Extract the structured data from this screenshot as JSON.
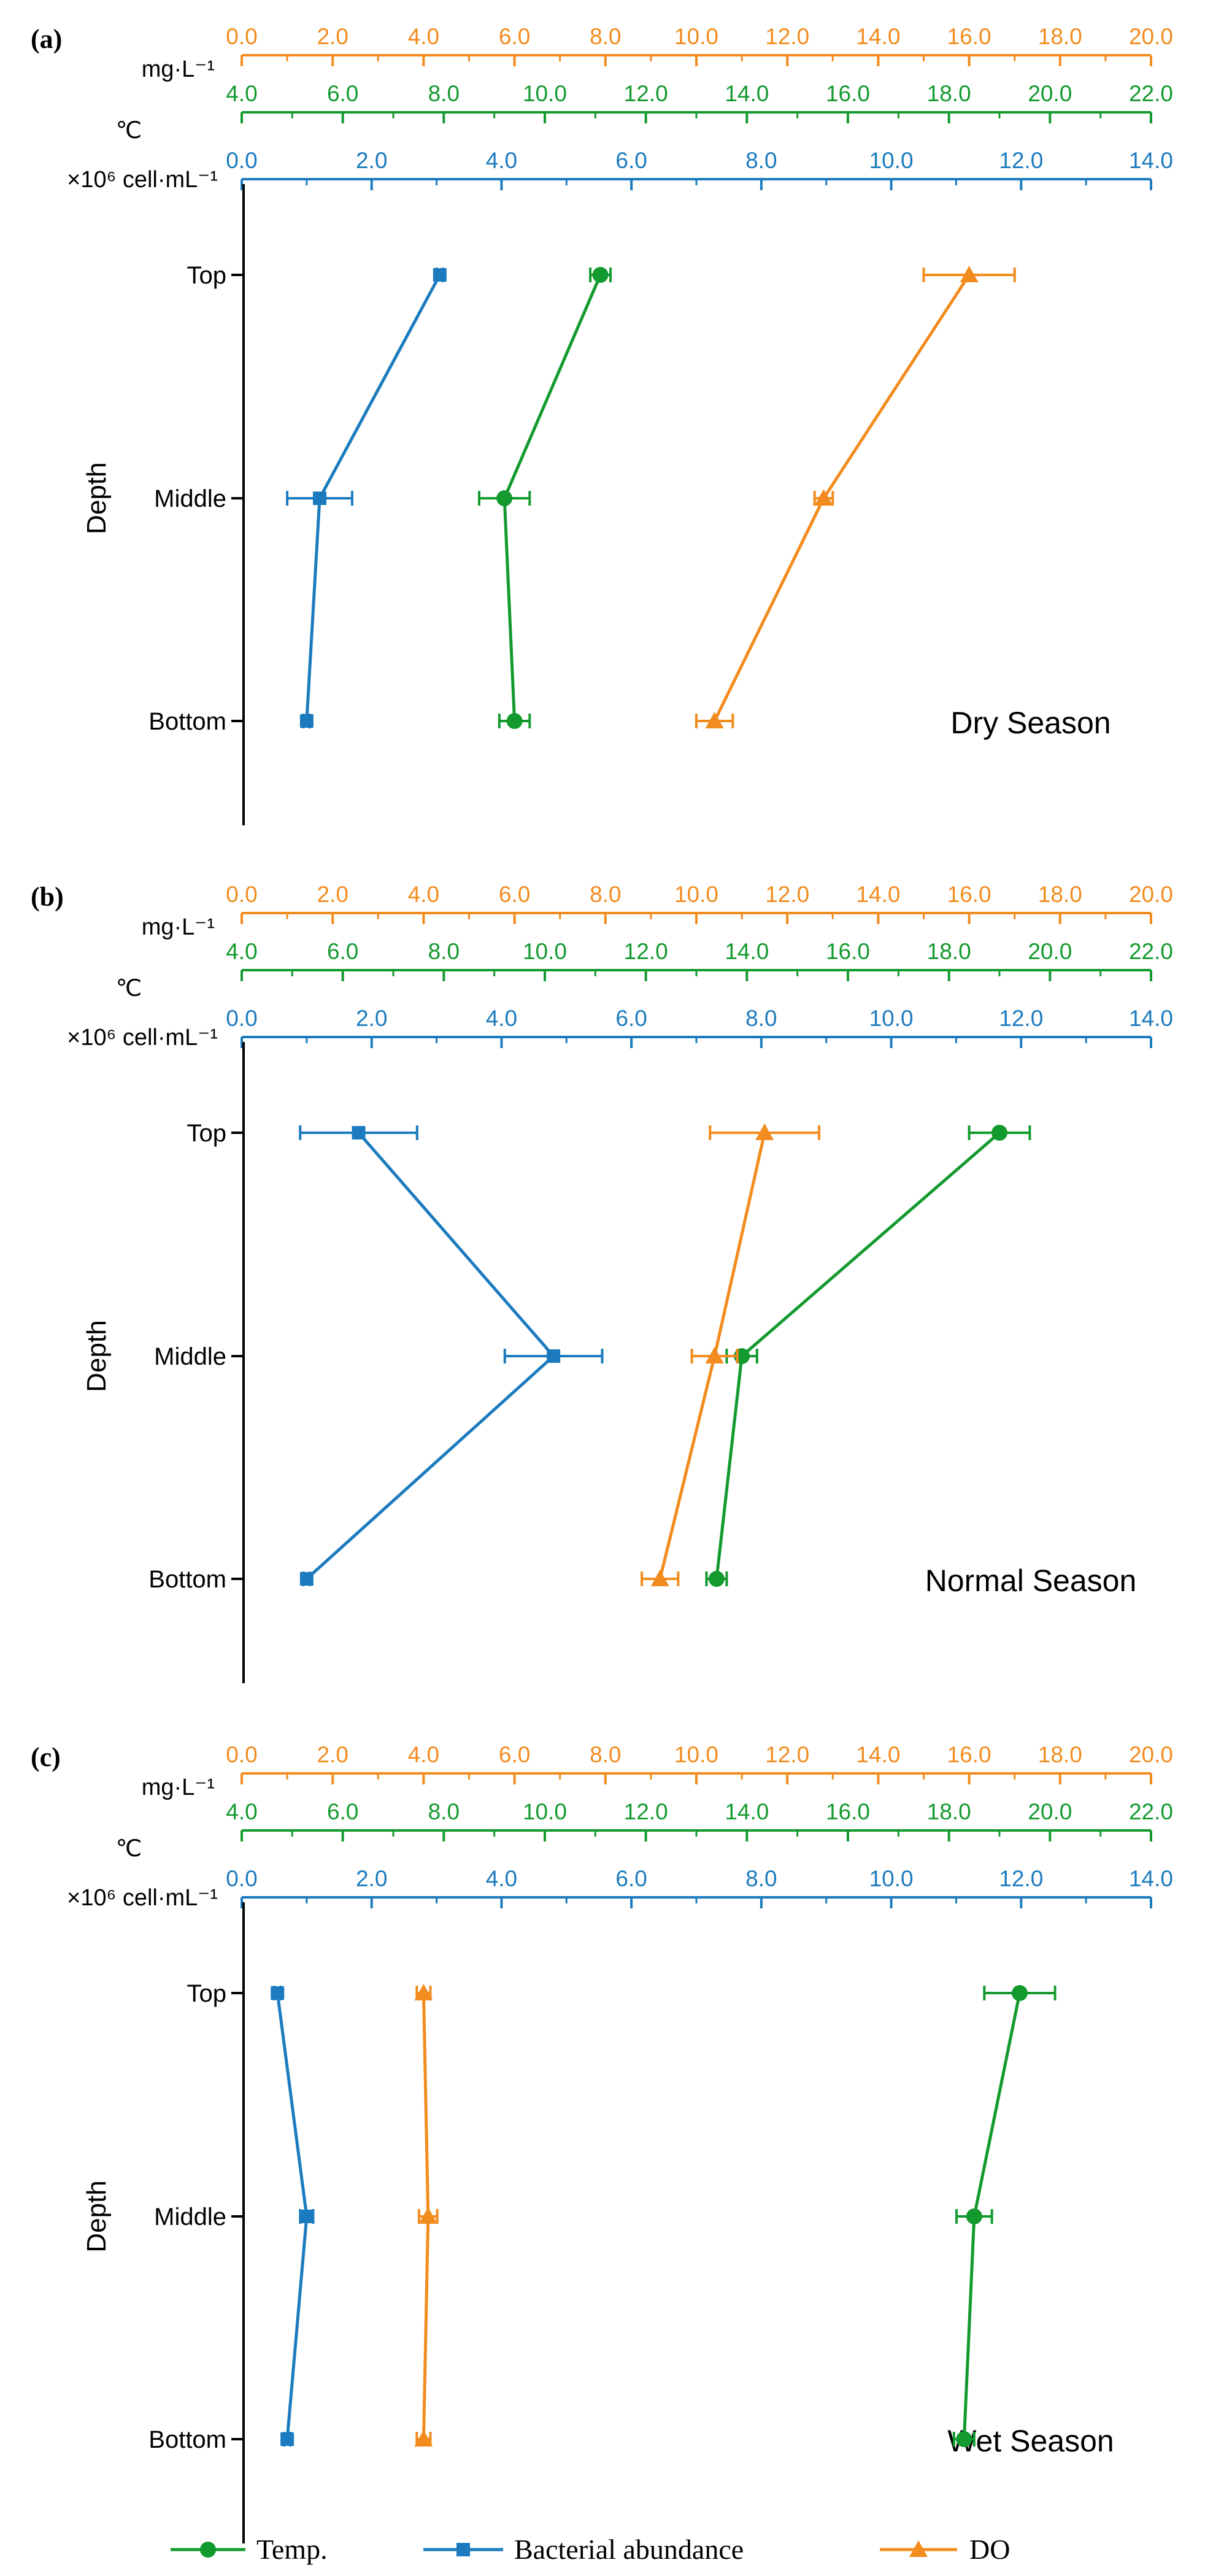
{
  "colors": {
    "do": "#F28C1E",
    "temp": "#139A2E",
    "bact": "#1B7BBE",
    "axis": "#000000"
  },
  "axes": {
    "do": {
      "label": "mg·L⁻¹",
      "range": [
        0,
        20
      ],
      "ticks": [
        "0.0",
        "2.0",
        "4.0",
        "6.0",
        "8.0",
        "10.0",
        "12.0",
        "14.0",
        "16.0",
        "18.0",
        "20.0"
      ]
    },
    "temp": {
      "label": "℃",
      "range": [
        4,
        22
      ],
      "ticks": [
        "4.0",
        "6.0",
        "8.0",
        "10.0",
        "12.0",
        "14.0",
        "16.0",
        "18.0",
        "20.0",
        "22.0"
      ]
    },
    "bact": {
      "label": "×10⁶ cell·mL⁻¹",
      "range": [
        0,
        14
      ],
      "ticks": [
        "0.0",
        "2.0",
        "4.0",
        "6.0",
        "8.0",
        "10.0",
        "12.0",
        "14.0"
      ]
    }
  },
  "depth_axis_label": "Depth",
  "depth_levels": [
    "Top",
    "Middle",
    "Bottom"
  ],
  "legend": [
    {
      "key": "temp",
      "label": "Temp.",
      "marker": "circle"
    },
    {
      "key": "bact",
      "label": "Bacterial abundance",
      "marker": "square"
    },
    {
      "key": "do",
      "label": "DO",
      "marker": "triangle"
    }
  ],
  "chart_data": [
    {
      "type": "line",
      "panel": "(a)",
      "title": "Dry Season",
      "ylabel": "Depth",
      "categories": [
        "Top",
        "Middle",
        "Bottom"
      ],
      "series": [
        {
          "name": "Temp.",
          "axis": "temp",
          "values": [
            11.1,
            9.2,
            9.4
          ],
          "errors": [
            0.2,
            0.5,
            0.3
          ]
        },
        {
          "name": "Bacterial abundance",
          "axis": "bact",
          "values": [
            3.05,
            1.2,
            1.0
          ],
          "errors": [
            0.05,
            0.5,
            0.05
          ]
        },
        {
          "name": "DO",
          "axis": "do",
          "values": [
            16.0,
            12.8,
            10.4
          ],
          "errors": [
            1.0,
            0.2,
            0.4
          ]
        }
      ]
    },
    {
      "type": "line",
      "panel": "(b)",
      "title": "Normal Season",
      "ylabel": "Depth",
      "categories": [
        "Top",
        "Middle",
        "Bottom"
      ],
      "series": [
        {
          "name": "Temp.",
          "axis": "temp",
          "values": [
            19.0,
            13.9,
            13.4
          ],
          "errors": [
            0.6,
            0.3,
            0.2
          ]
        },
        {
          "name": "Bacterial abundance",
          "axis": "bact",
          "values": [
            1.8,
            4.8,
            1.0
          ],
          "errors": [
            0.9,
            0.75,
            0.05
          ]
        },
        {
          "name": "DO",
          "axis": "do",
          "values": [
            11.5,
            10.4,
            9.2
          ],
          "errors": [
            1.2,
            0.5,
            0.4
          ]
        }
      ]
    },
    {
      "type": "line",
      "panel": "(c)",
      "title": "Wet Season",
      "ylabel": "Depth",
      "categories": [
        "Top",
        "Middle",
        "Bottom"
      ],
      "series": [
        {
          "name": "Temp.",
          "axis": "temp",
          "values": [
            19.4,
            18.5,
            18.3
          ],
          "errors": [
            0.7,
            0.35,
            0.2
          ]
        },
        {
          "name": "Bacterial abundance",
          "axis": "bact",
          "values": [
            0.55,
            1.0,
            0.7
          ],
          "errors": [
            0.05,
            0.1,
            0.05
          ]
        },
        {
          "name": "DO",
          "axis": "do",
          "values": [
            4.0,
            4.1,
            4.0
          ],
          "errors": [
            0.15,
            0.2,
            0.15
          ]
        }
      ]
    }
  ]
}
